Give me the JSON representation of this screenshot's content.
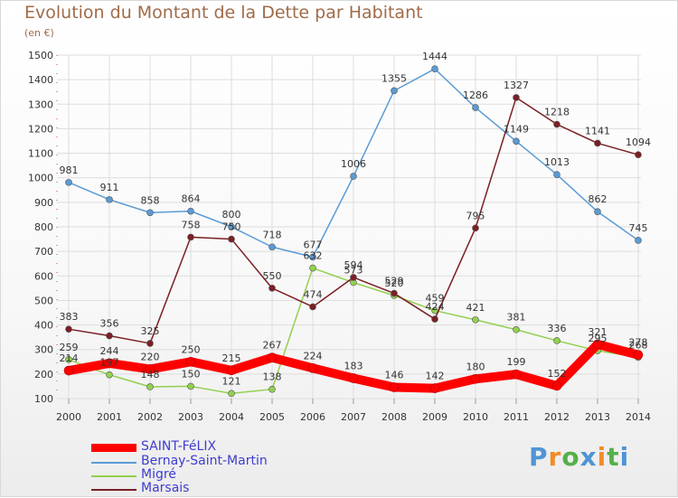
{
  "chart_data": {
    "type": "line",
    "title": "Evolution du Montant de la Dette par Habitant",
    "subtitle": "(en €)",
    "x": [
      2000,
      2001,
      2002,
      2003,
      2004,
      2005,
      2006,
      2007,
      2008,
      2009,
      2010,
      2011,
      2012,
      2013,
      2014
    ],
    "ylim": [
      100,
      1500
    ],
    "yticks": [
      100,
      200,
      300,
      400,
      500,
      600,
      700,
      800,
      900,
      1000,
      1100,
      1200,
      1300,
      1400,
      1500
    ],
    "grid": true,
    "legend_position": "bottom-left",
    "series": [
      {
        "name": "SAINT-FéLIX",
        "color": "#ff0000",
        "values": [
          214,
          244,
          220,
          250,
          215,
          267,
          224,
          183,
          146,
          142,
          180,
          199,
          152,
          321,
          278
        ]
      },
      {
        "name": "Bernay-Saint-Martin",
        "color": "#5b9bd5",
        "values": [
          981,
          911,
          858,
          864,
          800,
          718,
          677,
          1006,
          1355,
          1444,
          1286,
          1149,
          1013,
          862,
          745
        ]
      },
      {
        "name": "Migré",
        "color": "#92d050",
        "values": [
          259,
          197,
          148,
          150,
          121,
          138,
          632,
          573,
          520,
          459,
          421,
          381,
          336,
          295,
          268
        ]
      },
      {
        "name": "Marsais",
        "color": "#7b1f25",
        "values": [
          383,
          356,
          325,
          758,
          750,
          550,
          474,
          594,
          529,
          424,
          795,
          1327,
          1218,
          1141,
          1094
        ]
      }
    ]
  },
  "logo": {
    "text": "Proxiti",
    "colors": [
      "#4f94d4",
      "#f28c28",
      "#55b04a",
      "#4f94d4",
      "#f28c28",
      "#55b04a",
      "#4f94d4"
    ]
  }
}
